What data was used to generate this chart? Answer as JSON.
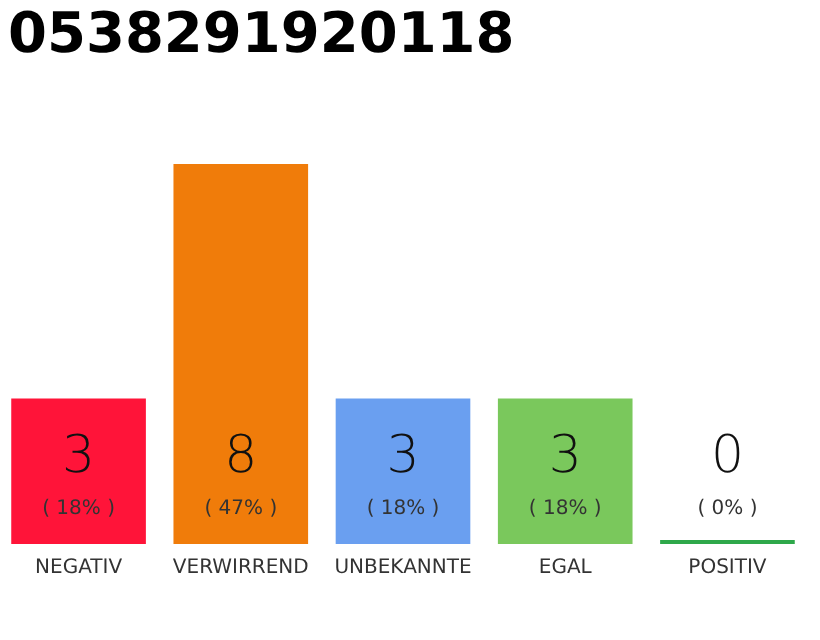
{
  "chart_data": {
    "type": "bar",
    "title": "0538291920118",
    "categories": [
      "NEGATIV",
      "VERWIRREND",
      "UNBEKANNTE",
      "EGAL",
      "POSITIV"
    ],
    "values": [
      18,
      47,
      18,
      18,
      0
    ],
    "colors": [
      "#ff1439",
      "#f07c0a",
      "#6a9ff0",
      "#7ac85c",
      "#2ea84a"
    ],
    "value_labels": [
      "( 18% )",
      "( 47% )",
      "( 18% )",
      "( 18% )",
      "( 0% )"
    ],
    "annotations": [
      "3",
      "8",
      "3",
      "3",
      "0"
    ]
  }
}
